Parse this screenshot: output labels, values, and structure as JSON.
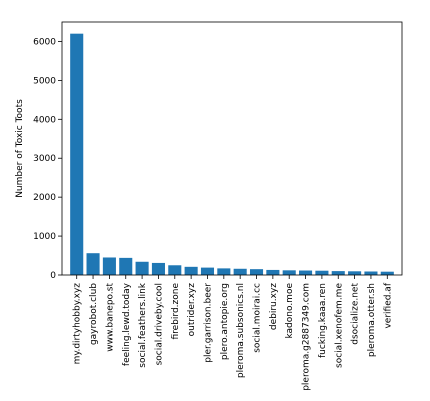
{
  "chart_data": {
    "type": "bar",
    "title": "",
    "xlabel": "",
    "ylabel": "Number of Toxic Toots",
    "ylim": [
      0,
      6500
    ],
    "yticks": [
      0,
      1000,
      2000,
      3000,
      4000,
      5000,
      6000
    ],
    "grid": false,
    "bar_color": "#1f77b4",
    "categories": [
      "my.dirtyhobby.xyz",
      "gayrobot.club",
      "www.banepo.st",
      "feeling.lewd.today",
      "social.feathers.link",
      "social.driveby.cool",
      "firebird.zone",
      "outrider.xyz",
      "pler.garrison.beer",
      "plero.antopie.org",
      "pleroma.subsonics.nl",
      "social.moirai.cc",
      "debiru.xyz",
      "kadono.moe",
      "pleroma.g2887349.com",
      "fucking.kaaa.ren",
      "social.xenofem.me",
      "dsocialize.net",
      "pleroma.otter.sh",
      "verified.af"
    ],
    "values": [
      6200,
      560,
      450,
      440,
      340,
      310,
      250,
      210,
      190,
      170,
      160,
      150,
      130,
      120,
      115,
      110,
      100,
      95,
      90,
      85
    ]
  }
}
